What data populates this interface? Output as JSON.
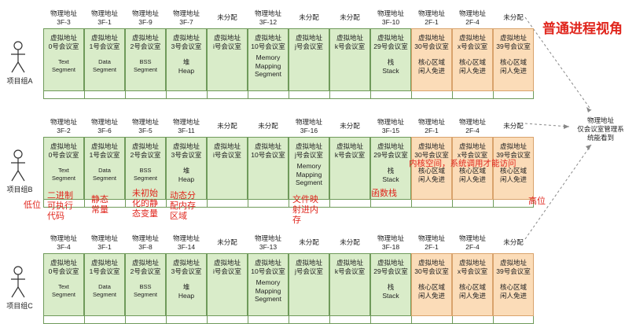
{
  "title": "普通进程视角",
  "manager_note": "物理地址\n仅会议室管理系\n统能看到",
  "high_label": "高位",
  "low_label": "低位",
  "groups": [
    {
      "label": "项目组A",
      "addresses": [
        "物理地址\n3F-3",
        "物理地址\n3F-1",
        "物理地址\n3F-9",
        "物理地址\n3F-7",
        "未分配",
        "物理地址\n3F-12",
        "未分配",
        "未分配",
        "物理地址\n3F-10",
        "物理地址\n2F-1",
        "物理地址\n2F-4",
        "未分配"
      ],
      "rooms": [
        "虚拟地址\n0号会议室",
        "虚拟地址\n1号会议室",
        "虚拟地址\n2号会议室",
        "虚拟地址\n3号会议室",
        "虚拟地址\ni号会议室",
        "虚拟地址\n10号会议室",
        "虚拟地址\nj号会议室",
        "虚拟地址\nk号会议室",
        "虚拟地址\n29号会议室",
        "虚拟地址\n30号会议室",
        "虚拟地址\nx号会议室",
        "虚拟地址\n39号会议室"
      ],
      "segments": [
        "Text\nSegment",
        "Data\nSegment",
        "BSS\nSegment",
        "堆\nHeap",
        "",
        "Memory\nMapping\nSegment",
        "",
        "",
        "栈\nStack",
        "核心区域\n闲人免进",
        "核心区域\n闲人免进",
        "核心区域\n闲人免进"
      ]
    },
    {
      "label": "项目组B",
      "addresses": [
        "物理地址\n3F-2",
        "物理地址\n3F-6",
        "物理地址\n3F-5",
        "物理地址\n3F-11",
        "未分配",
        "未分配",
        "物理地址\n3F-16",
        "未分配",
        "物理地址\n3F-15",
        "物理地址\n2F-1",
        "物理地址\n2F-4",
        "未分配"
      ],
      "rooms": [
        "虚拟地址\n0号会议室",
        "虚拟地址\n1号会议室",
        "虚拟地址\n2号会议室",
        "虚拟地址\n3号会议室",
        "虚拟地址\ni号会议室",
        "虚拟地址\n10号会议室",
        "虚拟地址\nj号会议室",
        "虚拟地址\nk号会议室",
        "虚拟地址\n29号会议室",
        "虚拟地址\n30号会议室",
        "虚拟地址\nx号会议室",
        "虚拟地址\n39号会议室"
      ],
      "segments": [
        "Text\nSegment",
        "Data\nSegment",
        "BSS\nSegment",
        "堆\nHeap",
        "",
        "",
        "Memory\nMapping\nSegment",
        "",
        "栈\nStack",
        "核心区域\n闲人免进",
        "核心区域\n闲人免进",
        "核心区域\n闲人免进"
      ]
    },
    {
      "label": "项目组C",
      "addresses": [
        "物理地址\n3F-4",
        "物理地址\n3F-1",
        "物理地址\n3F-8",
        "物理地址\n3F-14",
        "未分配",
        "物理地址\n3F-13",
        "未分配",
        "未分配",
        "物理地址\n3F-18",
        "物理地址\n2F-1",
        "物理地址\n2F-4",
        "未分配"
      ],
      "rooms": [
        "虚拟地址\n0号会议室",
        "虚拟地址\n1号会议室",
        "虚拟地址\n2号会议室",
        "虚拟地址\n3号会议室",
        "虚拟地址\ni号会议室",
        "虚拟地址\n10号会议室",
        "虚拟地址\nj号会议室",
        "虚拟地址\nk号会议室",
        "虚拟地址\n29号会议室",
        "虚拟地址\n30号会议室",
        "虚拟地址\nx号会议室",
        "虚拟地址\n39号会议室"
      ],
      "segments": [
        "Text\nSegment",
        "Data\nSegment",
        "BSS\nSegment",
        "堆\nHeap",
        "",
        "Memory\nMapping\nSegment",
        "",
        "",
        "栈\nStack",
        "核心区域\n闲人免进",
        "核心区域\n闲人免进",
        "核心区域\n闲人免进"
      ]
    }
  ],
  "annotations_b": {
    "text": "二进制\n可执行\n代码",
    "data": "静态\n常量",
    "bss": "未初始\n化的静\n态变量",
    "heap": "动态分\n配内存\n区域",
    "mmap": "文件映\n射进内\n存",
    "stack": "函数栈",
    "kernel": "内核空间，系统调用才能访问"
  },
  "colors": {
    "user_cell": "#d9ecc9",
    "kernel_cell": "#fbdcb8",
    "annotation": "#e0261d"
  }
}
